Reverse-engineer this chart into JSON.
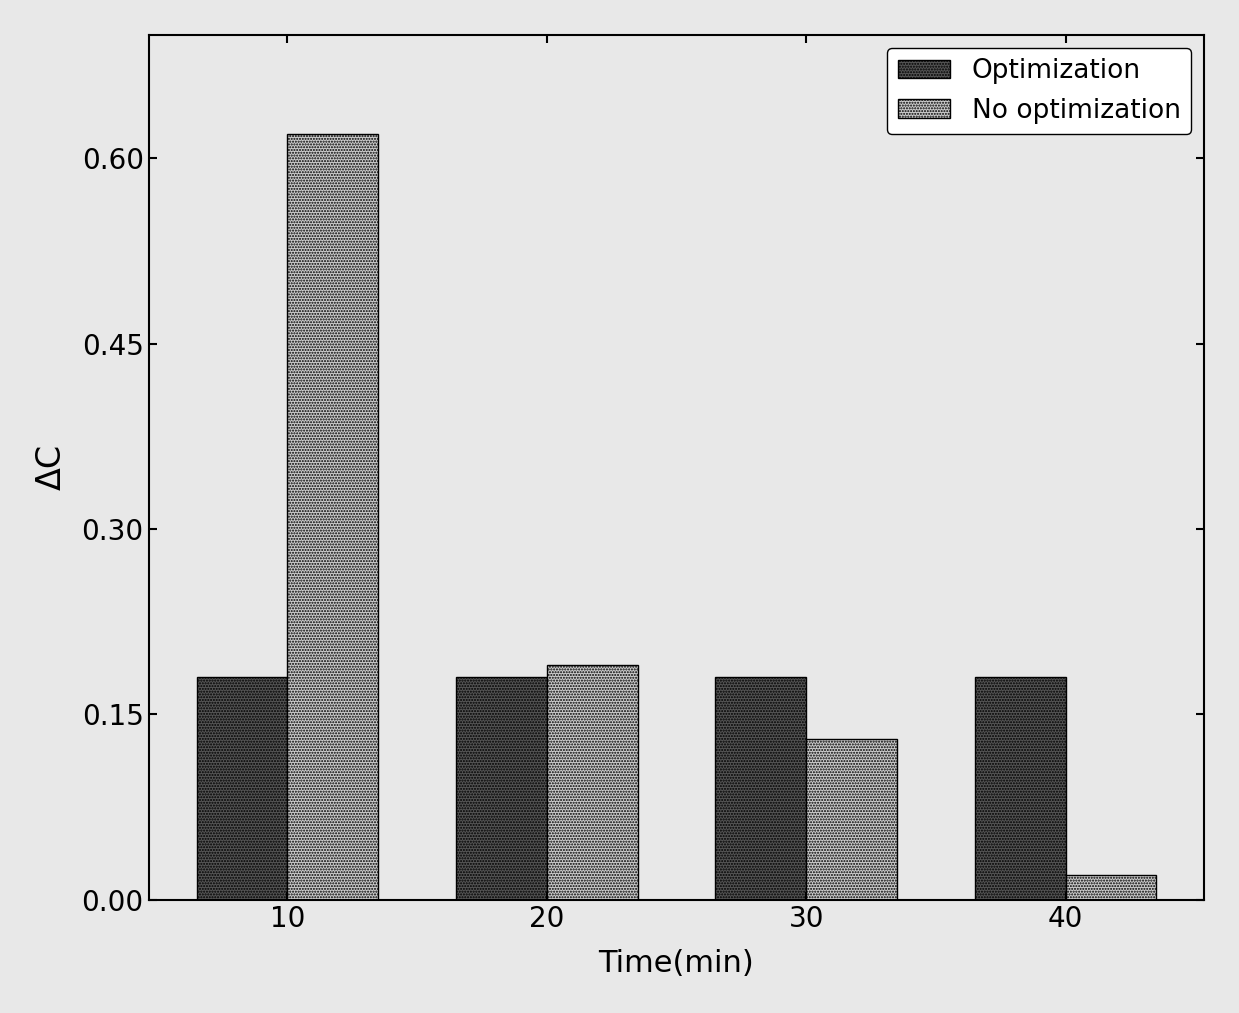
{
  "categories": [
    10,
    20,
    30,
    40
  ],
  "optimization_values": [
    0.18,
    0.18,
    0.18,
    0.18
  ],
  "no_optimization_values": [
    0.62,
    0.19,
    0.13,
    0.02
  ],
  "opt_color": "#555555",
  "no_opt_color": "#cccccc",
  "title": "",
  "xlabel": "Time(min)",
  "ylabel": "ΔC",
  "ylim": [
    0.0,
    0.7
  ],
  "yticks": [
    0.0,
    0.15,
    0.3,
    0.45,
    0.6
  ],
  "legend_labels": [
    "Optimization",
    "No optimization"
  ],
  "bar_width": 0.35,
  "fontsize_axis": 22,
  "fontsize_tick": 20,
  "fontsize_legend": 19,
  "background_color": "#e8e8e8",
  "plot_bg_color": "#e8e8e8"
}
